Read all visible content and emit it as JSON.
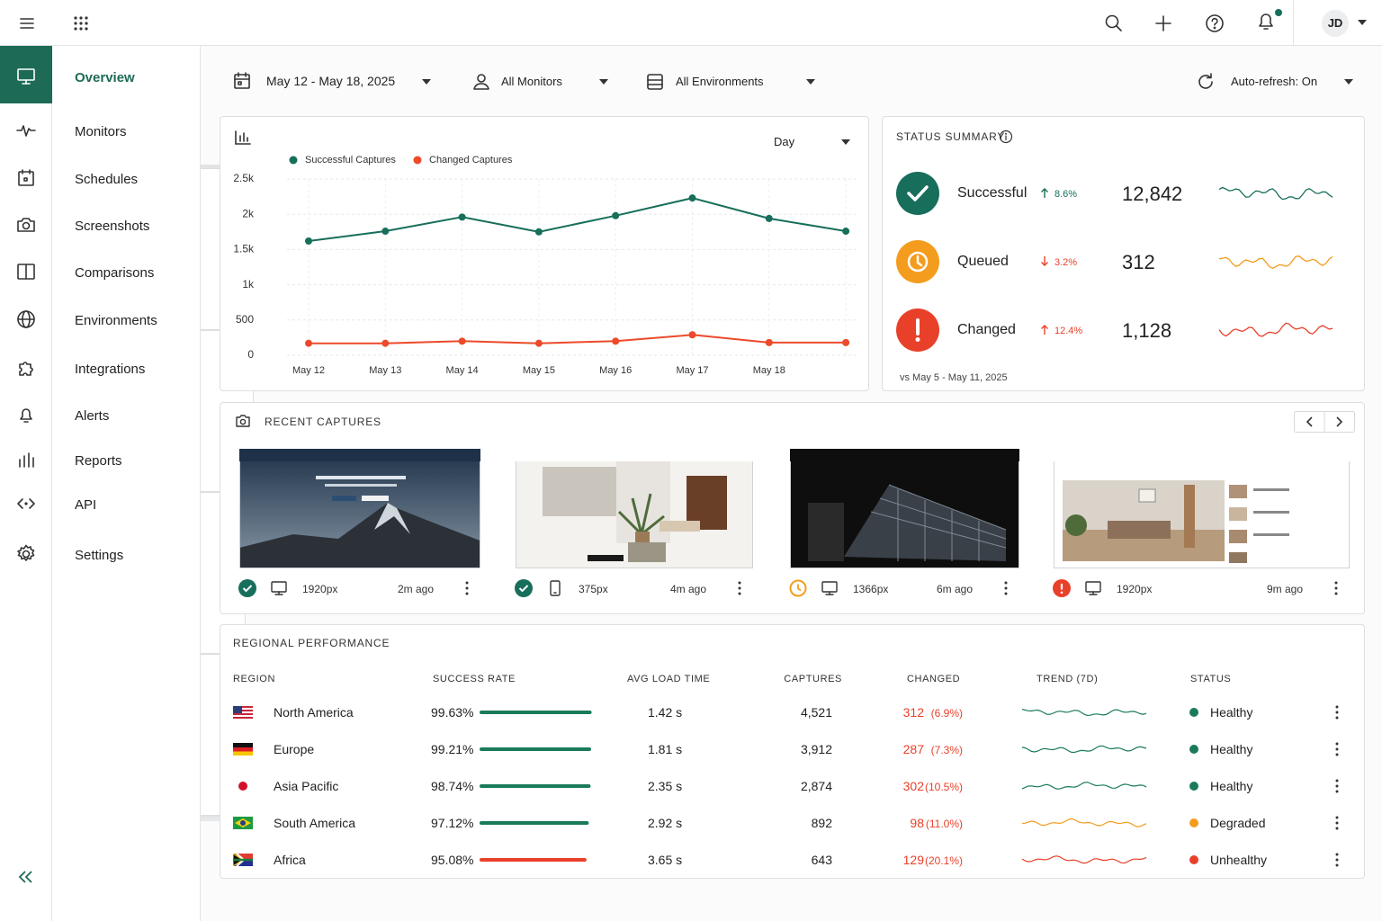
{
  "topbar": {
    "user_initials": "JD"
  },
  "nav": [
    "Overview",
    "Monitors",
    "Schedules",
    "Screenshots",
    "Comparisons",
    "Environments",
    "Integrations",
    "Alerts",
    "Reports",
    "API",
    "Settings"
  ],
  "filters": {
    "date_range": "May 12 - May 18, 2025",
    "monitors": "All Monitors",
    "environments": "All Environments",
    "auto_refresh": "Auto-refresh: On"
  },
  "chart_data": {
    "type": "line",
    "granularity": "Day",
    "categories": [
      "May 12",
      "May 13",
      "May 14",
      "May 15",
      "May 16",
      "May 17",
      "May 18",
      null
    ],
    "series": [
      {
        "name": "Successful Captures",
        "color": "#176e5b",
        "values": [
          1620,
          1760,
          1960,
          1750,
          1980,
          2230,
          1940,
          1760
        ]
      },
      {
        "name": "Changed Captures",
        "color": "#ec4a2a",
        "values": [
          170,
          170,
          200,
          170,
          200,
          290,
          180,
          180
        ]
      }
    ],
    "ylim": [
      0,
      2500
    ],
    "yticks": [
      0,
      500,
      {
        "value": 1000,
        "label": "1k"
      },
      {
        "value": 1500,
        "label": "1.5k"
      },
      {
        "value": 2000,
        "label": "2k"
      },
      {
        "value": 2500,
        "label": "2.5k"
      }
    ],
    "grid": true,
    "legend": "top-left"
  },
  "status_summary": {
    "title": "STATUS SUMMARY",
    "items": [
      {
        "label": "Successful",
        "trend": "up",
        "change": "8.6%",
        "value": "12,842",
        "color": "#176e5b"
      },
      {
        "label": "Queued",
        "trend": "down",
        "change": "3.2%",
        "value": "312",
        "color": "#f39c1d"
      },
      {
        "label": "Changed",
        "trend": "up",
        "change": "12.4%",
        "value": "1,128",
        "color": "#e9402a"
      }
    ],
    "comparison": "vs May 5 - May 11, 2025"
  },
  "recent_captures": {
    "title": "RECENT CAPTURES",
    "items": [
      {
        "status": "success",
        "device": "desktop",
        "resolution": "1920px",
        "time": "2m ago"
      },
      {
        "status": "success",
        "device": "mobile",
        "resolution": "375px",
        "time": "4m ago"
      },
      {
        "status": "queued",
        "device": "desktop",
        "resolution": "1366px",
        "time": "6m ago"
      },
      {
        "status": "changed",
        "device": "desktop",
        "resolution": "1920px",
        "time": "9m ago"
      }
    ]
  },
  "regional_performance": {
    "title": "REGIONAL PERFORMANCE",
    "columns": [
      "REGION",
      "SUCCESS RATE",
      "AVG LOAD TIME",
      "CAPTURES",
      "CHANGED",
      "TREND (7D)",
      "STATUS"
    ],
    "rows": [
      {
        "region": "North America",
        "success_rate": 99.63,
        "success_rate_label": "99.63%",
        "avg_load_time": "1.42 s",
        "captures": "4,521",
        "changed": "312",
        "changed_pct": "(6.9%)",
        "status": "Healthy",
        "color": "#1a7a5c"
      },
      {
        "region": "Europe",
        "success_rate": 99.21,
        "success_rate_label": "99.21%",
        "avg_load_time": "1.81 s",
        "captures": "3,912",
        "changed": "287",
        "changed_pct": "(7.3%)",
        "status": "Healthy",
        "color": "#1a7a5c"
      },
      {
        "region": "Asia Pacific",
        "success_rate": 98.74,
        "success_rate_label": "98.74%",
        "avg_load_time": "2.35 s",
        "captures": "2,874",
        "changed": "302",
        "changed_pct": "(10.5%)",
        "status": "Healthy",
        "color": "#1a7a5c"
      },
      {
        "region": "South America",
        "success_rate": 97.12,
        "success_rate_label": "97.12%",
        "avg_load_time": "2.92 s",
        "captures": "892",
        "changed": "98",
        "changed_pct": "(11.0%)",
        "status": "Degraded",
        "color": "#f39c1d"
      },
      {
        "region": "Africa",
        "success_rate": 95.08,
        "success_rate_label": "95.08%",
        "avg_load_time": "3.65 s",
        "captures": "643",
        "changed": "129",
        "changed_pct": "(20.1%)",
        "status": "Unhealthy",
        "color": "#e9402a"
      }
    ]
  }
}
